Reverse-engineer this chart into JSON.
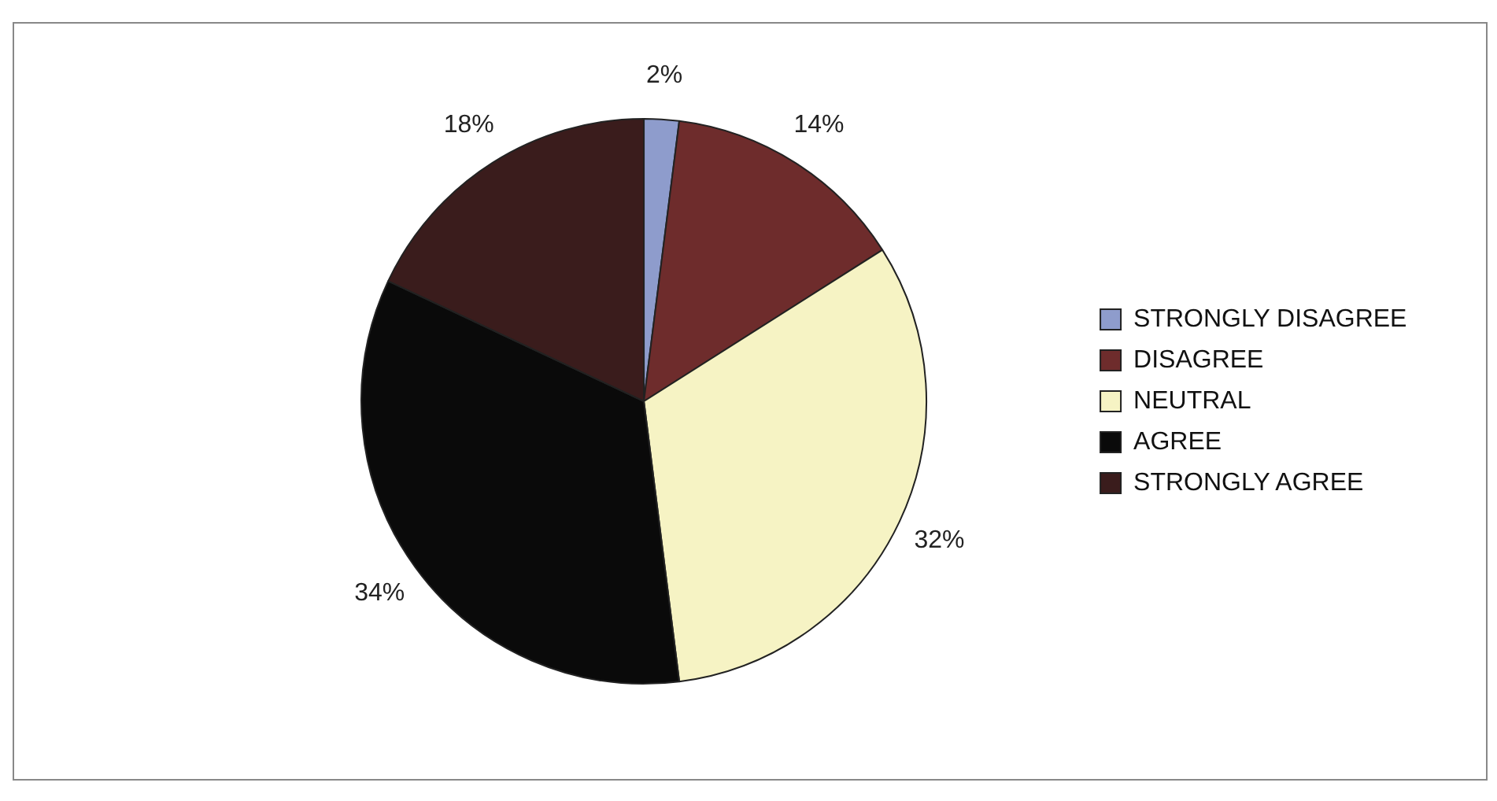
{
  "chart_data": {
    "type": "pie",
    "categories": [
      "STRONGLY DISAGREE",
      "DISAGREE",
      "NEUTRAL",
      "AGREE",
      "STRONGLY AGREE"
    ],
    "values": [
      2,
      14,
      32,
      34,
      18
    ],
    "colors": [
      "#8e9ccc",
      "#6e2c2c",
      "#f6f3c4",
      "#0a0a0a",
      "#3a1c1c"
    ],
    "value_labels": [
      "2%",
      "14%",
      "32%",
      "34%",
      "18%"
    ],
    "legend": "right"
  }
}
